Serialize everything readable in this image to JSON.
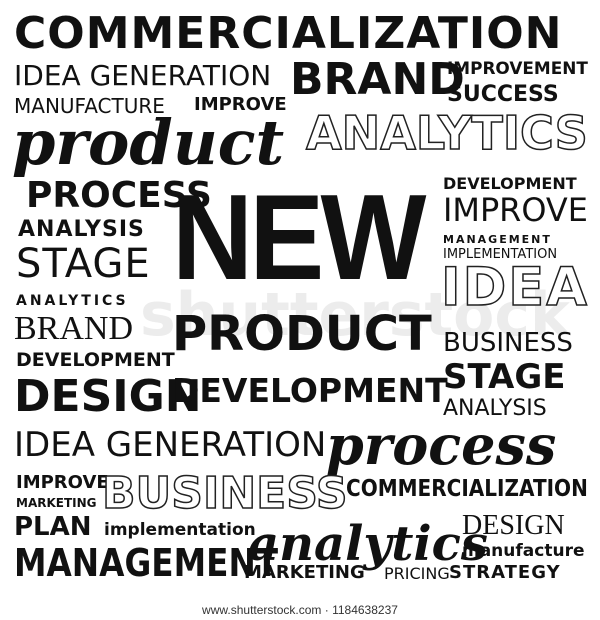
{
  "words": {
    "commercialization_top": "COMMERCIALIZATION",
    "idea_generation_1": "IDEA GENERATION",
    "brand_1": "BRAND",
    "improvement": "IMPROVEMENT",
    "success": "SUCCESS",
    "manufacture_1": "MANUFACTURE",
    "improve_1": "IMPROVE",
    "product_script": "product",
    "analytics_outline": "ANALYTICS",
    "process_1": "PROCESS",
    "analysis_1": "ANALYSIS",
    "stage_1": "STAGE",
    "analytics_small": "ANALYTICS",
    "brand_2": "BRAND",
    "development_1": "DEVELOPMENT",
    "design_1": "DESIGN",
    "new": "NEW",
    "product_center": "PRODUCT",
    "development_center": "DEVELOPMENT",
    "development_2": "DEVELOPMENT",
    "improve_2": "IMPROVE",
    "management_1": "MANAGEMENT",
    "implementation_1": "IMPLEMENTATION",
    "idea_outline": "IDEA",
    "business_1": "BUSINESS",
    "stage_2": "STAGE",
    "analysis_2": "ANALYSIS",
    "idea_generation_2": "IDEA GENERATION",
    "process_script": "process",
    "improve_3": "IMPROVE",
    "marketing_1": "MARKETING",
    "business_outline": "BUSINESS",
    "plan": "PLAN",
    "implementation_2": "implementation",
    "management_2": "MANAGEMENT",
    "commercialization_2": "COMMERCIALIZATION",
    "design_2": "DESIGN",
    "analytics_script": "analytics",
    "manufacture_2": "manufacture",
    "marketing_2": "MARKETING",
    "pricing": "PRICING",
    "strategy": "STRATEGY"
  },
  "watermark": "shutterstock",
  "footer": "www.shutterstock.com · 1184638237",
  "colors": {
    "ink": "#111111",
    "background": "#ffffff"
  }
}
